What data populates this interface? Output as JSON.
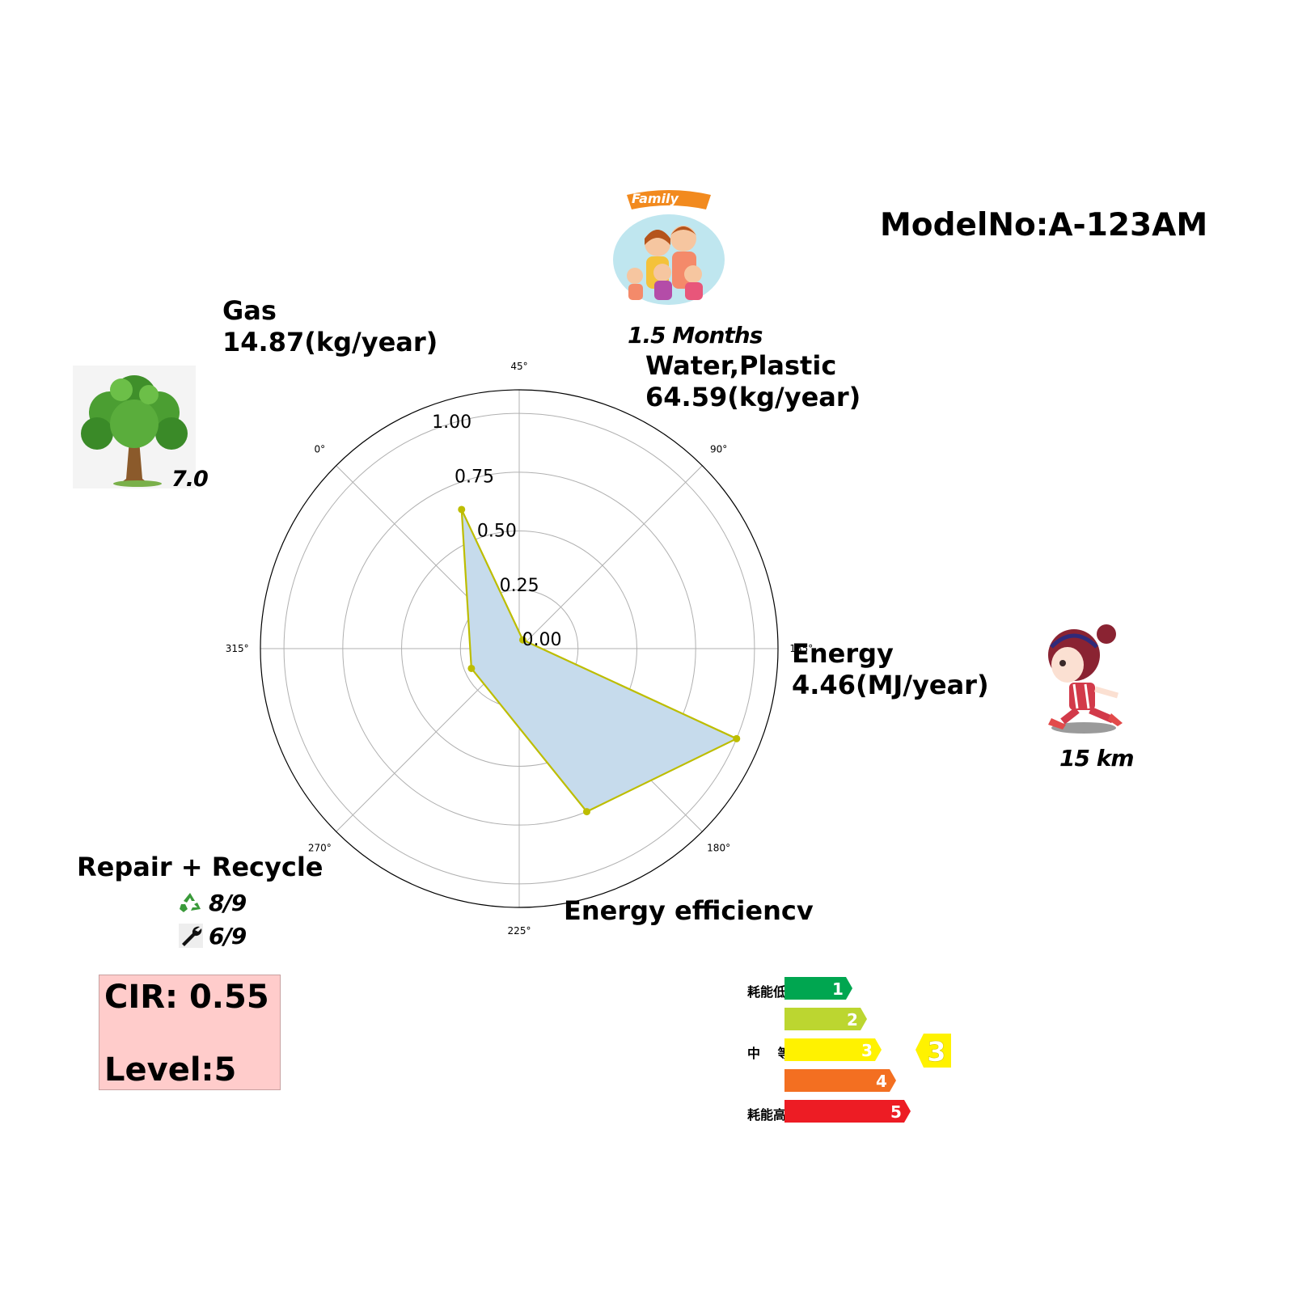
{
  "model_no": "ModelNo:A-123AM",
  "labels": {
    "gas": {
      "name": "Gas",
      "value": "14.87(kg/year)"
    },
    "water": {
      "name": "Water,Plastic",
      "value": "64.59(kg/year)"
    },
    "energy": {
      "name": "Energy",
      "value": "4.46(MJ/year)"
    },
    "efficiency": {
      "name": "Energy efficiencv"
    },
    "repair": {
      "title": "Repair + Recycle",
      "recycle": "8/9",
      "repair": "6/9"
    }
  },
  "icons": {
    "tree": {
      "name": "tree-icon",
      "value": "7.0"
    },
    "family": {
      "name": "family-icon",
      "banner": "Family",
      "value": "1.5 Months"
    },
    "runner": {
      "name": "runner-icon",
      "value": "15 km"
    },
    "recycle": "recycle-icon",
    "wrench": "wrench-icon"
  },
  "cir": {
    "line1": "CIR: 0.55",
    "line2": "Level:5"
  },
  "energy_label": {
    "top_label": "耗能低",
    "mid_label": "中 等",
    "bottom_label": "耗能高",
    "grades": [
      {
        "grade": "1",
        "color": "#00a650"
      },
      {
        "grade": "2",
        "color": "#bcd630"
      },
      {
        "grade": "3",
        "color": "#fff200"
      },
      {
        "grade": "4",
        "color": "#f36f21"
      },
      {
        "grade": "5",
        "color": "#ed1c24"
      }
    ],
    "current": "3",
    "current_color": "#fff200"
  },
  "chart_data": {
    "type": "radar",
    "angle_ticks": [
      "0°",
      "45°",
      "90°",
      "135°",
      "180°",
      "225°",
      "270°",
      "315°"
    ],
    "radial_ticks": [
      "0.00",
      "0.25",
      "0.50",
      "0.75",
      "1.00"
    ],
    "rlim": [
      0,
      1.1
    ],
    "points": [
      {
        "angle": 22.5,
        "r": 0.64
      },
      {
        "angle": 67.5,
        "r": 0.04
      },
      {
        "angle": 157.5,
        "r": 1.0
      },
      {
        "angle": 202.5,
        "r": 0.75
      },
      {
        "angle": 292.5,
        "r": 0.22
      }
    ],
    "line_color": "#bdbd00",
    "fill_color": "#c6dbec",
    "grid": true
  }
}
